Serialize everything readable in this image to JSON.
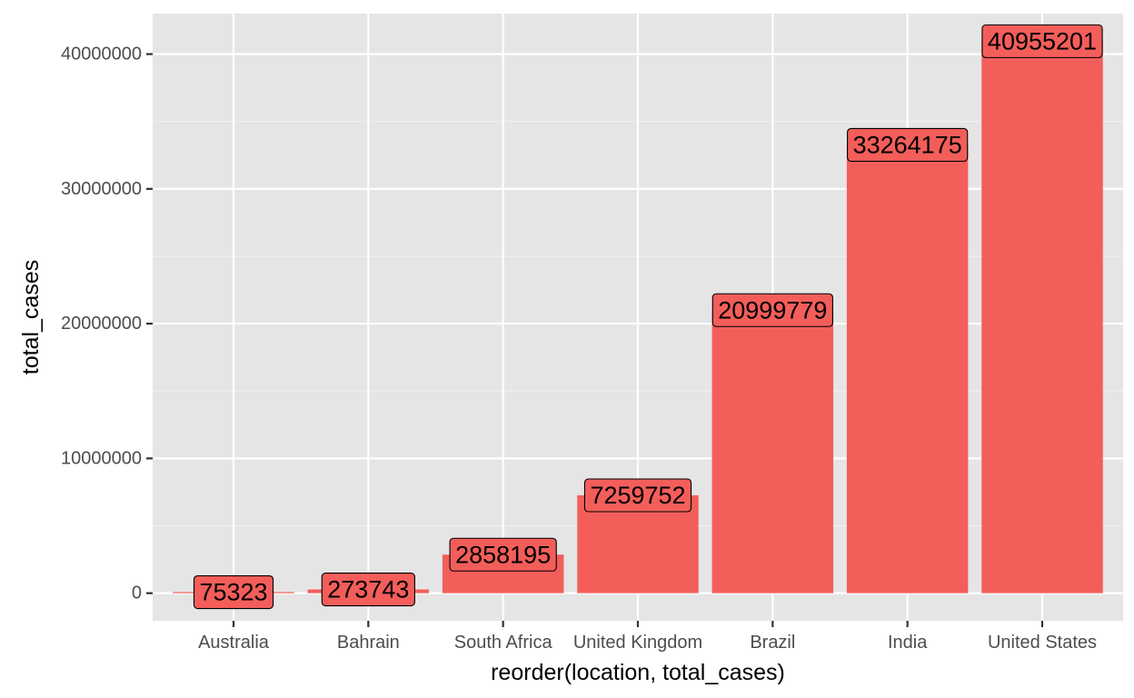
{
  "chart_data": {
    "type": "bar",
    "categories": [
      "Australia",
      "Bahrain",
      "South Africa",
      "United Kingdom",
      "Brazil",
      "India",
      "United States"
    ],
    "values": [
      75323,
      273743,
      2858195,
      7259752,
      20999779,
      33264175,
      40955201
    ],
    "data_labels": [
      "75323",
      "273743",
      "2858195",
      "7259752",
      "20999779",
      "33264175",
      "40955201"
    ],
    "title": "",
    "xlabel": "reorder(location, total_cases)",
    "ylabel": "total_cases",
    "ylim": [
      -2047760,
      43002961
    ],
    "y_ticks": [
      0,
      10000000,
      20000000,
      30000000,
      40000000
    ],
    "y_tick_labels": [
      "0",
      "10000000",
      "20000000",
      "30000000",
      "40000000"
    ],
    "grid": true,
    "legend": "none",
    "colors": {
      "bar_fill": "#f35e5a",
      "label_fill": "#f35e5a",
      "panel_background": "#e5e5e5",
      "grid": "#ffffff"
    }
  }
}
